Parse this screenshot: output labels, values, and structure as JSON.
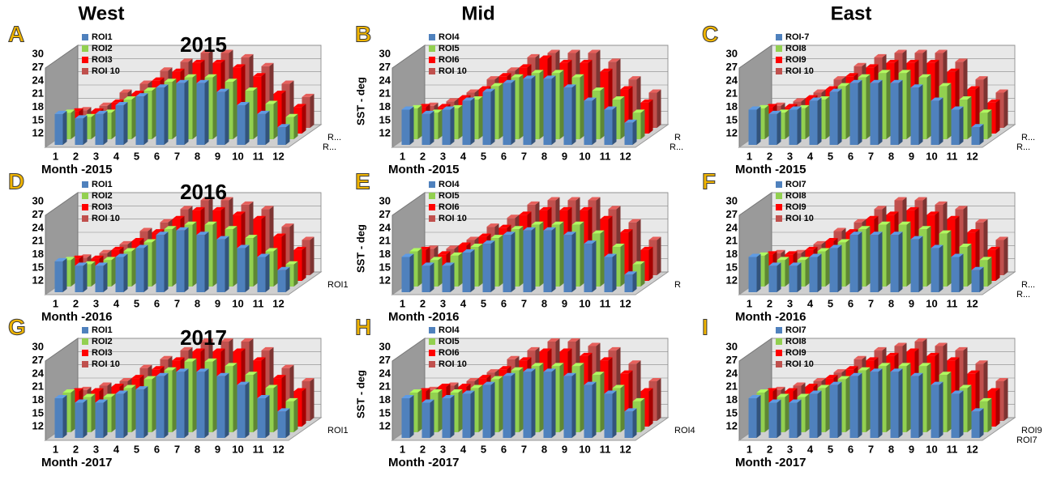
{
  "columns": [
    "West",
    "Mid",
    "East"
  ],
  "chart_data": [
    {
      "type": "bar3d",
      "panel_label": "A",
      "title": "2015",
      "xlabel": "Month -2015",
      "categories": [
        "1",
        "2",
        "3",
        "4",
        "5",
        "6",
        "7",
        "8",
        "9",
        "10",
        "11",
        "12"
      ],
      "ylim": [
        12,
        30
      ],
      "yticks": [
        12,
        15,
        18,
        21,
        24,
        27,
        30
      ],
      "depth_labels": [
        "R...",
        "R..."
      ],
      "series": [
        {
          "name": "ROI1",
          "color": "#4f81bd",
          "values": [
            19,
            18,
            19,
            21,
            23,
            25,
            26,
            26,
            24,
            21,
            19,
            16
          ]
        },
        {
          "name": "ROI2",
          "color": "#92d050",
          "values": [
            18,
            17,
            18,
            21,
            23,
            25,
            26,
            26,
            25,
            23,
            20,
            17
          ]
        },
        {
          "name": "ROI3",
          "color": "#ff0000",
          "values": [
            17,
            17,
            19,
            21,
            24,
            26,
            28,
            28,
            27,
            25,
            21,
            18
          ]
        },
        {
          "name": "ROI 10",
          "color": "#c0504d",
          "values": [
            16,
            17,
            20,
            22,
            25,
            27,
            29,
            29,
            28,
            26,
            22,
            19
          ]
        }
      ]
    },
    {
      "type": "bar3d",
      "panel_label": "B",
      "ylabel": "SST - deg",
      "xlabel": "Month -2015",
      "categories": [
        "1",
        "2",
        "3",
        "4",
        "5",
        "6",
        "7",
        "8",
        "9",
        "10",
        "11",
        "12"
      ],
      "ylim": [
        12,
        30
      ],
      "yticks": [
        12,
        15,
        18,
        21,
        24,
        27,
        30
      ],
      "depth_labels": [
        "R",
        "R..."
      ],
      "series": [
        {
          "name": "ROI4",
          "color": "#4f81bd",
          "values": [
            20,
            19,
            20,
            22,
            24,
            26,
            27,
            27,
            25,
            22,
            20,
            17
          ]
        },
        {
          "name": "ROI5",
          "color": "#92d050",
          "values": [
            19,
            18,
            19,
            21,
            24,
            26,
            27,
            27,
            26,
            23,
            21,
            18
          ]
        },
        {
          "name": "ROI6",
          "color": "#ff0000",
          "values": [
            18,
            18,
            20,
            22,
            25,
            27,
            29,
            28,
            28,
            26,
            22,
            19
          ]
        },
        {
          "name": "ROI 10",
          "color": "#c0504d",
          "values": [
            17,
            18,
            20,
            23,
            25,
            28,
            29,
            29,
            29,
            27,
            23,
            20
          ]
        }
      ]
    },
    {
      "type": "bar3d",
      "panel_label": "C",
      "xlabel": "Month -2015",
      "categories": [
        "1",
        "2",
        "3",
        "4",
        "5",
        "6",
        "7",
        "8",
        "9",
        "10",
        "11",
        "12"
      ],
      "ylim": [
        12,
        30
      ],
      "yticks": [
        12,
        15,
        18,
        21,
        24,
        27,
        30
      ],
      "depth_labels": [
        "R...",
        "R..."
      ],
      "series": [
        {
          "name": "ROI-7",
          "color": "#4f81bd",
          "values": [
            20,
            19,
            20,
            22,
            24,
            26,
            26,
            26,
            25,
            22,
            20,
            16
          ]
        },
        {
          "name": "ROI8",
          "color": "#92d050",
          "values": [
            19,
            18,
            19,
            21,
            24,
            26,
            27,
            27,
            26,
            24,
            21,
            18
          ]
        },
        {
          "name": "ROI9",
          "color": "#ff0000",
          "values": [
            18,
            18,
            20,
            22,
            25,
            27,
            28,
            28,
            28,
            26,
            22,
            19
          ]
        },
        {
          "name": "ROI 10",
          "color": "#c0504d",
          "values": [
            17,
            18,
            20,
            23,
            26,
            28,
            29,
            29,
            29,
            27,
            23,
            20
          ]
        }
      ]
    },
    {
      "type": "bar3d",
      "panel_label": "D",
      "title": "2016",
      "xlabel": "Month -2016",
      "categories": [
        "1",
        "2",
        "3",
        "4",
        "5",
        "6",
        "7",
        "8",
        "9",
        "10",
        "11",
        "12"
      ],
      "ylim": [
        12,
        30
      ],
      "yticks": [
        12,
        15,
        18,
        21,
        24,
        27,
        30
      ],
      "depth_labels": [
        "ROI1"
      ],
      "series": [
        {
          "name": "ROI1",
          "color": "#4f81bd",
          "values": [
            19,
            18,
            18,
            20,
            22,
            25,
            26,
            25,
            24,
            22,
            20,
            17
          ]
        },
        {
          "name": "ROI2",
          "color": "#92d050",
          "values": [
            18,
            17,
            18,
            20,
            22,
            25,
            26,
            26,
            25,
            23,
            20,
            17
          ]
        },
        {
          "name": "ROI3",
          "color": "#ff0000",
          "values": [
            17,
            17,
            19,
            21,
            23,
            26,
            28,
            28,
            27,
            26,
            22,
            19
          ]
        },
        {
          "name": "ROI 10",
          "color": "#c0504d",
          "values": [
            16,
            17,
            19,
            22,
            24,
            27,
            29,
            29,
            28,
            27,
            23,
            20
          ]
        }
      ]
    },
    {
      "type": "bar3d",
      "panel_label": "E",
      "ylabel": "SST - deg",
      "xlabel": "Month -2016",
      "categories": [
        "1",
        "2",
        "3",
        "4",
        "5",
        "6",
        "7",
        "8",
        "9",
        "10",
        "11",
        "12"
      ],
      "ylim": [
        12,
        30
      ],
      "yticks": [
        12,
        15,
        18,
        21,
        24,
        27,
        30
      ],
      "depth_labels": [
        "R"
      ],
      "series": [
        {
          "name": "ROI4",
          "color": "#4f81bd",
          "values": [
            20,
            18,
            18,
            21,
            23,
            25,
            26,
            26,
            25,
            23,
            20,
            16
          ]
        },
        {
          "name": "ROI5",
          "color": "#92d050",
          "values": [
            20,
            18,
            19,
            21,
            23,
            25,
            26,
            26,
            26,
            24,
            21,
            17
          ]
        },
        {
          "name": "ROI6",
          "color": "#ff0000",
          "values": [
            19,
            18,
            20,
            22,
            24,
            27,
            28,
            28,
            28,
            26,
            23,
            19
          ]
        },
        {
          "name": "ROI 10",
          "color": "#c0504d",
          "values": [
            18,
            18,
            20,
            23,
            25,
            28,
            29,
            29,
            29,
            27,
            24,
            20
          ]
        }
      ]
    },
    {
      "type": "bar3d",
      "panel_label": "F",
      "xlabel": "Month -2016",
      "categories": [
        "1",
        "2",
        "3",
        "4",
        "5",
        "6",
        "7",
        "8",
        "9",
        "10",
        "11",
        "12"
      ],
      "ylim": [
        12,
        30
      ],
      "yticks": [
        12,
        15,
        18,
        21,
        24,
        27,
        30
      ],
      "depth_labels": [
        "R...",
        "R..."
      ],
      "series": [
        {
          "name": "ROI7",
          "color": "#4f81bd",
          "values": [
            20,
            18,
            18,
            20,
            22,
            25,
            25,
            25,
            24,
            22,
            20,
            17
          ]
        },
        {
          "name": "ROI8",
          "color": "#92d050",
          "values": [
            19,
            18,
            18,
            20,
            22,
            25,
            26,
            26,
            25,
            24,
            21,
            18
          ]
        },
        {
          "name": "ROI9",
          "color": "#ff0000",
          "values": [
            18,
            18,
            19,
            21,
            23,
            26,
            27,
            28,
            27,
            26,
            23,
            19
          ]
        },
        {
          "name": "ROI 10",
          "color": "#c0504d",
          "values": [
            17,
            17,
            19,
            22,
            24,
            27,
            29,
            29,
            28,
            27,
            24,
            20
          ]
        }
      ]
    },
    {
      "type": "bar3d",
      "panel_label": "G",
      "title": "2017",
      "xlabel": "Month -2017",
      "categories": [
        "1",
        "2",
        "3",
        "4",
        "5",
        "6",
        "7",
        "8",
        "9",
        "10",
        "11",
        "12"
      ],
      "ylim": [
        12,
        30
      ],
      "yticks": [
        12,
        15,
        18,
        21,
        24,
        27,
        30
      ],
      "depth_labels": [
        "ROI1"
      ],
      "series": [
        {
          "name": "ROI1",
          "color": "#4f81bd",
          "values": [
            21,
            20,
            20,
            22,
            23,
            26,
            27,
            27,
            26,
            24,
            21,
            18
          ]
        },
        {
          "name": "ROI2",
          "color": "#92d050",
          "values": [
            21,
            20,
            20,
            22,
            24,
            26,
            28,
            28,
            27,
            25,
            22,
            19
          ]
        },
        {
          "name": "ROI3",
          "color": "#ff0000",
          "values": [
            20,
            20,
            21,
            23,
            25,
            27,
            29,
            29,
            29,
            27,
            23,
            20
          ]
        },
        {
          "name": "ROI 10",
          "color": "#c0504d",
          "values": [
            19,
            20,
            21,
            24,
            26,
            28,
            30,
            30,
            30,
            28,
            24,
            21
          ]
        }
      ]
    },
    {
      "type": "bar3d",
      "panel_label": "H",
      "ylabel": "SST - deg",
      "xlabel": "Month -2017",
      "categories": [
        "1",
        "2",
        "3",
        "4",
        "5",
        "6",
        "7",
        "8",
        "9",
        "10",
        "11",
        "12"
      ],
      "ylim": [
        12,
        30
      ],
      "yticks": [
        12,
        15,
        18,
        21,
        24,
        27,
        30
      ],
      "depth_labels": [
        "ROI4"
      ],
      "series": [
        {
          "name": "ROI4",
          "color": "#4f81bd",
          "values": [
            21,
            20,
            21,
            22,
            24,
            26,
            27,
            27,
            26,
            24,
            22,
            18
          ]
        },
        {
          "name": "ROI5",
          "color": "#92d050",
          "values": [
            21,
            21,
            21,
            22,
            24,
            26,
            27,
            27,
            27,
            25,
            22,
            19
          ]
        },
        {
          "name": "ROI6",
          "color": "#ff0000",
          "values": [
            20,
            21,
            21,
            23,
            25,
            27,
            29,
            29,
            28,
            27,
            24,
            20
          ]
        },
        {
          "name": "ROI 10",
          "color": "#c0504d",
          "values": [
            19,
            20,
            21,
            23,
            26,
            28,
            30,
            30,
            29,
            28,
            25,
            21
          ]
        }
      ]
    },
    {
      "type": "bar3d",
      "panel_label": "I",
      "xlabel": "Month -2017",
      "categories": [
        "1",
        "2",
        "3",
        "4",
        "5",
        "6",
        "7",
        "8",
        "9",
        "10",
        "11",
        "12"
      ],
      "ylim": [
        12,
        30
      ],
      "yticks": [
        12,
        15,
        18,
        21,
        24,
        27,
        30
      ],
      "depth_labels": [
        "ROI9",
        "ROI7"
      ],
      "series": [
        {
          "name": "ROI7",
          "color": "#4f81bd",
          "values": [
            21,
            20,
            20,
            22,
            24,
            26,
            27,
            27,
            26,
            24,
            22,
            18
          ]
        },
        {
          "name": "ROI8",
          "color": "#92d050",
          "values": [
            21,
            20,
            20,
            22,
            24,
            26,
            27,
            27,
            27,
            25,
            22,
            19
          ]
        },
        {
          "name": "ROI9",
          "color": "#ff0000",
          "values": [
            20,
            20,
            21,
            23,
            25,
            27,
            28,
            29,
            28,
            27,
            24,
            20
          ]
        },
        {
          "name": "ROI 10",
          "color": "#c0504d",
          "values": [
            19,
            20,
            21,
            23,
            26,
            28,
            29,
            30,
            29,
            28,
            25,
            21
          ]
        }
      ]
    }
  ]
}
